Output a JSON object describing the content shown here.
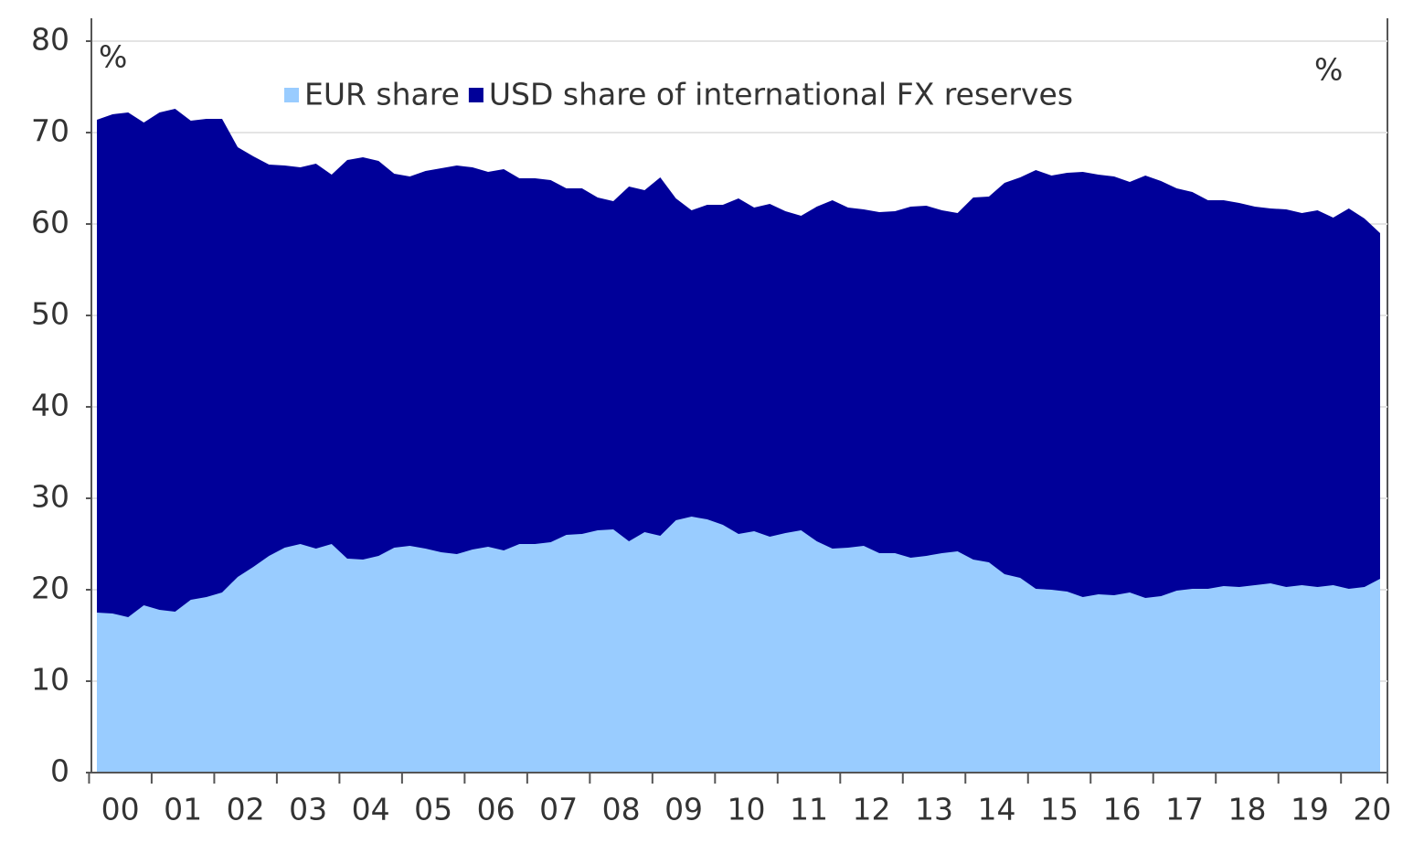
{
  "chart_data": {
    "type": "area",
    "annotations": [
      "%",
      "%"
    ],
    "categories": [
      "00",
      null,
      null,
      null,
      "01",
      null,
      null,
      null,
      "02",
      null,
      null,
      null,
      "03",
      null,
      null,
      null,
      "04",
      null,
      null,
      null,
      "05",
      null,
      null,
      null,
      "06",
      null,
      null,
      null,
      "07",
      null,
      null,
      null,
      "08",
      null,
      null,
      null,
      "09",
      null,
      null,
      null,
      "10",
      null,
      null,
      null,
      "11",
      null,
      null,
      null,
      "12",
      null,
      null,
      null,
      "13",
      null,
      null,
      null,
      "14",
      null,
      null,
      null,
      "15",
      null,
      null,
      null,
      "16",
      null,
      null,
      null,
      "17",
      null,
      null,
      null,
      "18",
      null,
      null,
      null,
      "19",
      null,
      null,
      null,
      "20",
      null,
      null
    ],
    "series": [
      {
        "name": "EUR share",
        "color": "#99ccff",
        "values": [
          17.5,
          17.4,
          17.0,
          18.3,
          17.8,
          17.6,
          18.9,
          19.2,
          19.7,
          21.4,
          22.5,
          23.7,
          24.6,
          25.0,
          24.5,
          25.0,
          23.4,
          23.3,
          23.7,
          24.6,
          24.8,
          24.5,
          24.1,
          23.9,
          24.4,
          24.7,
          24.3,
          25.0,
          25.0,
          25.2,
          26.0,
          26.1,
          26.5,
          26.6,
          25.3,
          26.3,
          25.9,
          27.6,
          28.0,
          27.7,
          27.1,
          26.1,
          26.4,
          25.8,
          26.2,
          26.5,
          25.3,
          24.5,
          24.6,
          24.8,
          24.0,
          24.0,
          23.5,
          23.7,
          24.0,
          24.2,
          23.3,
          23.0,
          21.7,
          21.3,
          20.1,
          20.0,
          19.8,
          19.2,
          19.5,
          19.4,
          19.7,
          19.1,
          19.3,
          19.9,
          20.1,
          20.1,
          20.4,
          20.3,
          20.5,
          20.7,
          20.3,
          20.5,
          20.3,
          20.5,
          20.1,
          20.3,
          21.2
        ]
      },
      {
        "name": "USD share of international FX reserves",
        "color": "#000099",
        "values": [
          71.4,
          72.0,
          72.2,
          71.1,
          72.2,
          72.6,
          71.3,
          71.5,
          71.5,
          68.4,
          67.4,
          66.5,
          66.4,
          66.2,
          66.6,
          65.4,
          67.0,
          67.3,
          66.9,
          65.5,
          65.2,
          65.8,
          66.1,
          66.4,
          66.2,
          65.7,
          66.0,
          65.0,
          65.0,
          64.8,
          63.9,
          63.9,
          62.9,
          62.5,
          64.1,
          63.7,
          65.1,
          62.8,
          61.5,
          62.1,
          62.1,
          62.8,
          61.8,
          62.2,
          61.4,
          60.9,
          61.9,
          62.6,
          61.8,
          61.6,
          61.3,
          61.4,
          61.9,
          62.0,
          61.5,
          61.2,
          62.9,
          63.0,
          64.5,
          65.1,
          65.9,
          65.3,
          65.6,
          65.7,
          65.4,
          65.2,
          64.6,
          65.3,
          64.7,
          63.9,
          63.5,
          62.6,
          62.6,
          62.3,
          61.9,
          61.7,
          61.6,
          61.2,
          61.5,
          60.7,
          61.7,
          60.6,
          59.0
        ]
      }
    ],
    "ylim": [
      0,
      80
    ],
    "yticks": [
      0,
      10,
      20,
      30,
      40,
      50,
      60,
      70,
      80
    ],
    "grid": true
  }
}
